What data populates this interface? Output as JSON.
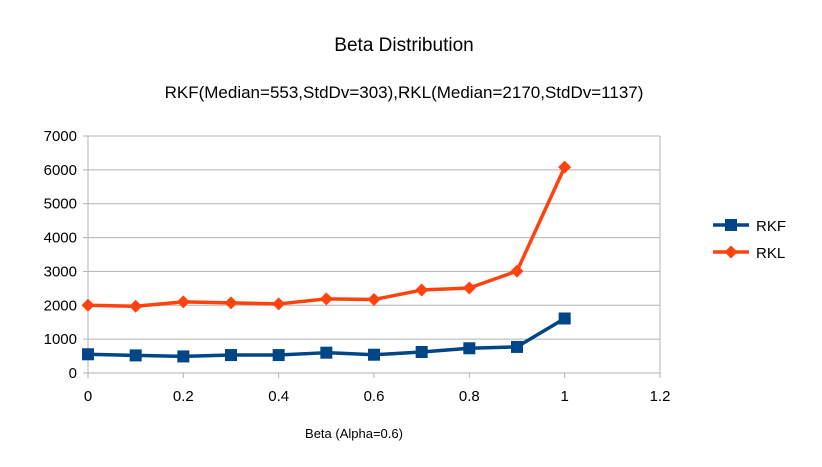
{
  "chart_data": {
    "type": "line",
    "title": "Beta Distribution",
    "subtitle": "RKF(Median=553,StdDv=303),RKL(Median=2170,StdDv=1137)",
    "xlabel": "Beta (Alpha=0.6)",
    "ylabel": "",
    "xlim": [
      0,
      1.2
    ],
    "ylim": [
      0,
      7000
    ],
    "xticks": [
      0,
      0.2,
      0.4,
      0.6,
      0.8,
      1,
      1.2
    ],
    "xtick_labels": [
      "0",
      "0.2",
      "0.4",
      "0.6",
      "0.8",
      "1",
      "1.2"
    ],
    "yticks": [
      0,
      1000,
      2000,
      3000,
      4000,
      5000,
      6000,
      7000
    ],
    "ytick_labels": [
      "0",
      "1000",
      "2000",
      "3000",
      "4000",
      "5000",
      "6000",
      "7000"
    ],
    "grid": "horizontal",
    "legend": "right",
    "x": [
      0,
      0.1,
      0.2,
      0.3,
      0.4,
      0.5,
      0.6,
      0.7,
      0.8,
      0.9,
      1.0
    ],
    "series": [
      {
        "name": "RKF",
        "color": "#004586",
        "marker": "square",
        "values": [
          553,
          520,
          490,
          530,
          530,
          600,
          540,
          620,
          730,
          770,
          1610
        ]
      },
      {
        "name": "RKL",
        "color": "#ff420e",
        "marker": "diamond",
        "values": [
          2000,
          1970,
          2100,
          2070,
          2040,
          2190,
          2170,
          2450,
          2510,
          3010,
          6080
        ]
      }
    ]
  }
}
